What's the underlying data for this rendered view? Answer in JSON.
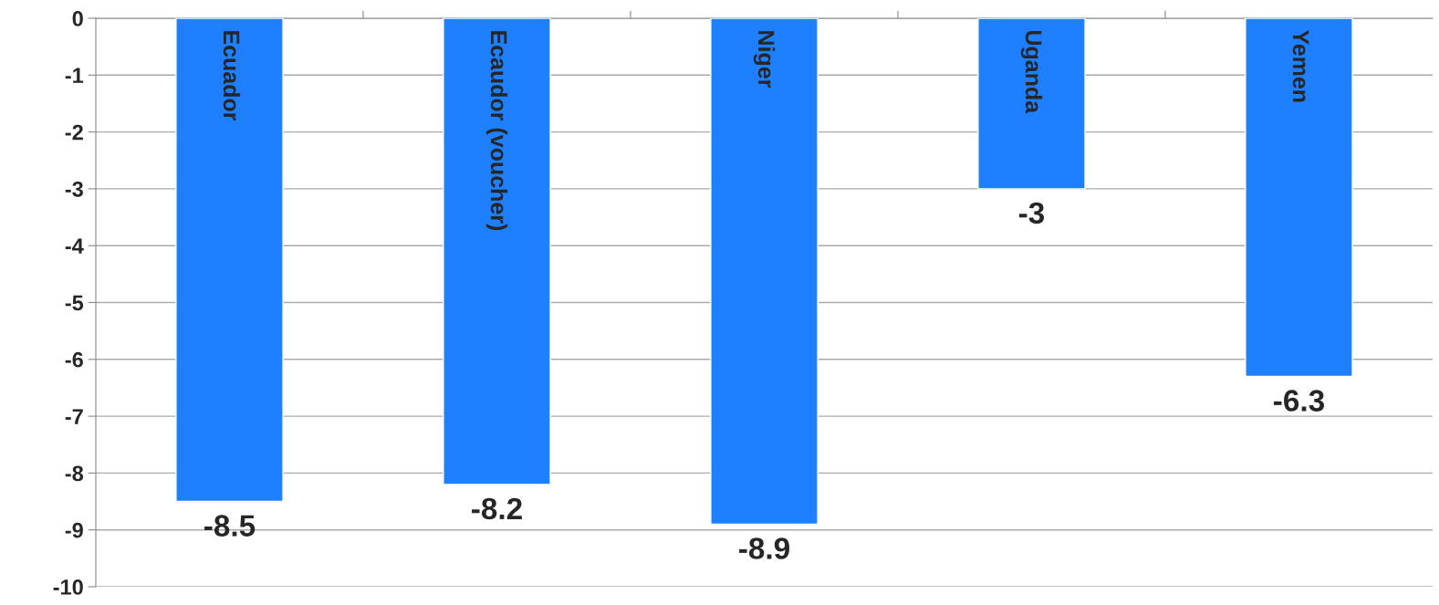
{
  "chart_data": {
    "type": "bar",
    "categories": [
      "Ecuador",
      "Ecaudor (voucher)",
      "Niger",
      "Uganda",
      "Yemen"
    ],
    "values": [
      -8.5,
      -8.2,
      -8.9,
      -3,
      -6.3
    ],
    "color": "#1e7fff",
    "ylim": [
      -10,
      0
    ],
    "yticks": [
      0,
      -1,
      -2,
      -3,
      -4,
      -5,
      -6,
      -7,
      -8,
      -9,
      -10
    ],
    "grid": "y",
    "data_labels": true
  }
}
